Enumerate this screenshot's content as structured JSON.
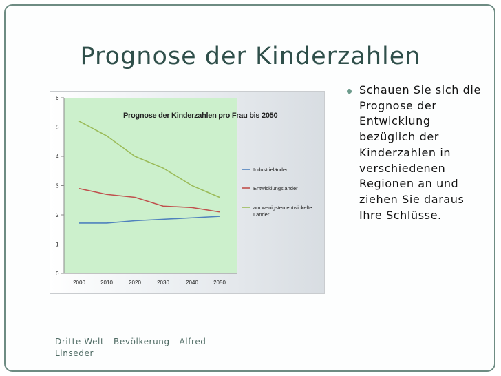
{
  "slide": {
    "title": "Prognose der Kinderzahlen",
    "bullet": "Schauen Sie sich die Prognose der Entwicklung bezüglich der Kinderzahlen in verschiedenen Regionen an und ziehen Sie daraus Ihre Schlüsse.",
    "footer": "Dritte Welt - Bevölkerung  - Alfred Linseder"
  },
  "colors": {
    "title": "#2f4f4a",
    "frame": "#6e8c83",
    "plot_area": "#ccf0cc",
    "bullet": "#6d9b8c"
  },
  "chart_data": {
    "type": "line",
    "title": "Prognose der Kinderzahlen pro Frau bis 2050",
    "xlabel": "",
    "ylabel": "",
    "categories": [
      "2000",
      "2010",
      "2020",
      "2030",
      "2040",
      "2050"
    ],
    "y_ticks": [
      "0",
      "1",
      "2",
      "3",
      "4",
      "5",
      "6"
    ],
    "ylim": [
      0,
      6
    ],
    "grid": false,
    "legend_position": "right",
    "series": [
      {
        "name": "Industrieländer",
        "color": "#4f81bd",
        "values": [
          1.72,
          1.72,
          1.8,
          1.85,
          1.9,
          1.95
        ]
      },
      {
        "name": "Entwicklungsländer",
        "color": "#c0504d",
        "values": [
          2.9,
          2.7,
          2.6,
          2.3,
          2.25,
          2.1
        ]
      },
      {
        "name": "am wenigsten entwickelte Länder",
        "color": "#9bbb59",
        "values": [
          5.2,
          4.7,
          4.0,
          3.6,
          3.0,
          2.6
        ]
      }
    ]
  }
}
